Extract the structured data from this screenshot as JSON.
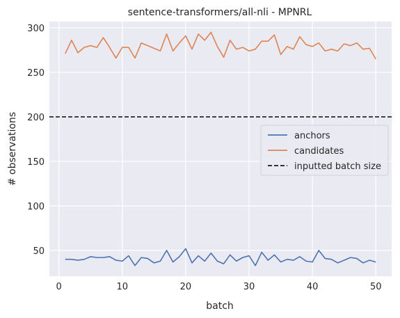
{
  "chart_data": {
    "type": "line",
    "title": "sentence-transformers/all-nli - MPNRL",
    "xlabel": "batch",
    "ylabel": "# observations",
    "xlim": [
      -1.5,
      52.5
    ],
    "ylim": [
      21,
      307
    ],
    "xticks": [
      0,
      10,
      20,
      30,
      40,
      50
    ],
    "yticks": [
      50,
      100,
      150,
      200,
      250,
      300
    ],
    "grid": true,
    "legend_position": "center-right",
    "x": [
      1,
      2,
      3,
      4,
      5,
      6,
      7,
      8,
      9,
      10,
      11,
      12,
      13,
      14,
      15,
      16,
      17,
      18,
      19,
      20,
      21,
      22,
      23,
      24,
      25,
      26,
      27,
      28,
      29,
      30,
      31,
      32,
      33,
      34,
      35,
      36,
      37,
      38,
      39,
      40,
      41,
      42,
      43,
      44,
      45,
      46,
      47,
      48,
      49,
      50
    ],
    "series": [
      {
        "name": "anchors",
        "color": "#4c72b0",
        "values": [
          40,
          40,
          39,
          40,
          43,
          42,
          42,
          43,
          39,
          38,
          44,
          33,
          42,
          41,
          36,
          38,
          50,
          37,
          43,
          52,
          36,
          44,
          38,
          47,
          38,
          35,
          45,
          38,
          42,
          44,
          33,
          48,
          39,
          45,
          37,
          40,
          39,
          43,
          38,
          37,
          50,
          41,
          40,
          36,
          39,
          42,
          41,
          36,
          39,
          37
        ]
      },
      {
        "name": "candidates",
        "color": "#dd8452",
        "values": [
          271,
          286,
          272,
          278,
          280,
          278,
          289,
          278,
          266,
          278,
          278,
          266,
          283,
          280,
          277,
          274,
          293,
          274,
          283,
          291,
          276,
          293,
          286,
          295,
          279,
          267,
          286,
          276,
          278,
          274,
          276,
          285,
          285,
          292,
          270,
          279,
          276,
          290,
          281,
          279,
          283,
          274,
          276,
          274,
          282,
          280,
          283,
          276,
          277,
          265
        ]
      }
    ],
    "reference_line": {
      "name": "inputted batch size",
      "y": 200,
      "color": "#1a1a1a",
      "style": "dashed"
    }
  }
}
